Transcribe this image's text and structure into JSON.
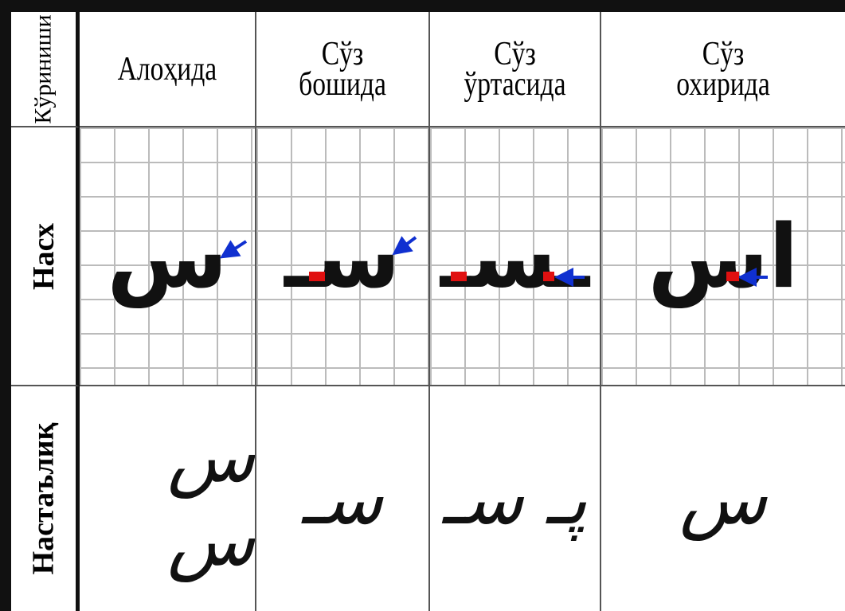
{
  "table": {
    "header": [
      "Кўриниши",
      "Алоҳида",
      "Сўз бошида",
      "Сўз ўртасида",
      "Сўз охирида"
    ],
    "rows": [
      {
        "label": "Насх",
        "cells": [
          "س",
          "سـ",
          "ـسـ",
          "اس"
        ]
      },
      {
        "label": "Настаълиқ",
        "cells": [
          "س س",
          "سـ",
          "پـ سـ",
          "س"
        ]
      }
    ]
  }
}
